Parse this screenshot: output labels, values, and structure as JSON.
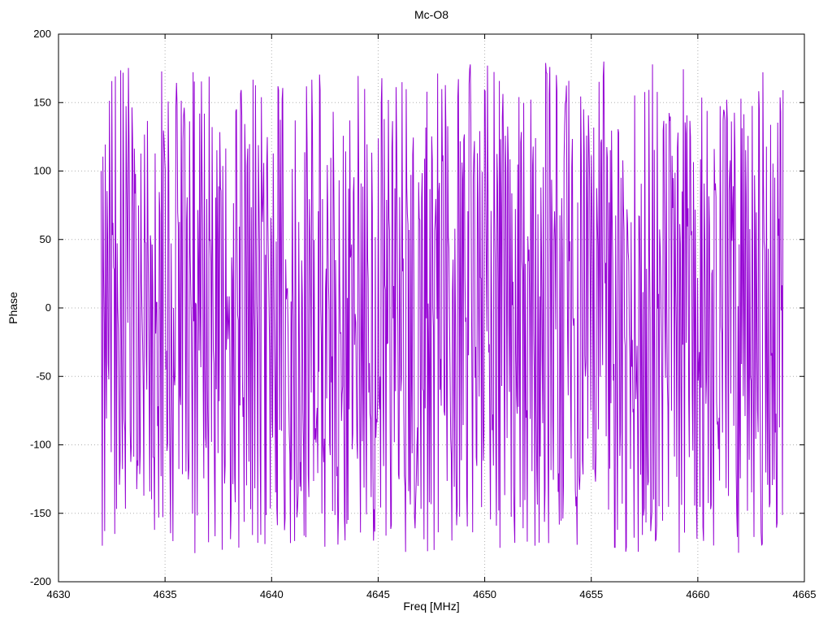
{
  "chart": {
    "title": "Mc-O8",
    "xlabel": "Freq [MHz]",
    "ylabel": "Phase"
  },
  "chart_data": {
    "type": "line",
    "title": "Mc-O8",
    "xlabel": "Freq [MHz]",
    "ylabel": "Phase",
    "xlim": [
      4630,
      4665
    ],
    "ylim": [
      -200,
      200
    ],
    "x_ticks": [
      4630,
      4635,
      4640,
      4645,
      4650,
      4655,
      4660,
      4665
    ],
    "y_ticks": [
      -200,
      -150,
      -100,
      -50,
      0,
      50,
      100,
      150,
      200
    ],
    "grid": true,
    "grid_style": "dotted",
    "legend": false,
    "series": [
      {
        "name": "phase",
        "color": "#9400d3",
        "x_start": 4632.0,
        "x_end": 4664.0,
        "num_points": 1150,
        "y_wrap_min": -180,
        "y_wrap_max": 180,
        "first_value": 100,
        "seed": 77,
        "description": "Densely wrapped interferometric phase noise spanning -180 to +180 degrees across 4632-4664 MHz; appears as near-solid vertical purple strokes due to phase wrapping at nearly every sample"
      }
    ]
  }
}
